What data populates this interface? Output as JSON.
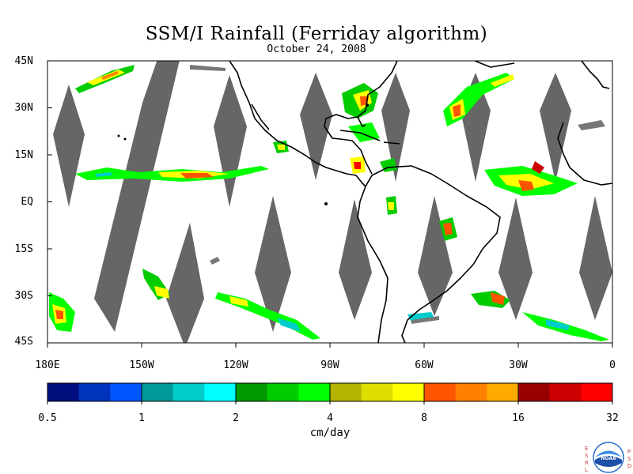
{
  "title": "SSM/I Rainfall (Ferriday algorithm)",
  "subtitle": "October 24, 2008",
  "map": {
    "lon_range": [
      -180,
      0
    ],
    "lat_range": [
      -45,
      45
    ],
    "lat_labels": [
      "45N",
      "30N",
      "15N",
      "EQ",
      "15S",
      "30S",
      "45S"
    ],
    "lon_labels": [
      "180E",
      "150W",
      "120W",
      "90W",
      "60W",
      "30W",
      "0"
    ],
    "no_data_color": "#666666",
    "land_outline_color": "#000000"
  },
  "colorbar": {
    "colors": [
      "#000f7d",
      "#0033bb",
      "#0055ff",
      "#009999",
      "#00cccc",
      "#00ffff",
      "#009900",
      "#00cc00",
      "#00ff00",
      "#b3b300",
      "#dddd00",
      "#ffff00",
      "#ff5500",
      "#ff8000",
      "#ffaa00",
      "#990000",
      "#cc0000",
      "#ff0000"
    ],
    "tick_labels": [
      "0.5",
      "1",
      "2",
      "4",
      "8",
      "16",
      "32"
    ],
    "units": "cm/day"
  },
  "logo": {
    "left_letters": [
      "E",
      "S",
      "R",
      "L"
    ],
    "right_letters": [
      "P",
      "S",
      "D"
    ],
    "center_text": "NOAA",
    "icon": "noaa-logo-icon"
  }
}
